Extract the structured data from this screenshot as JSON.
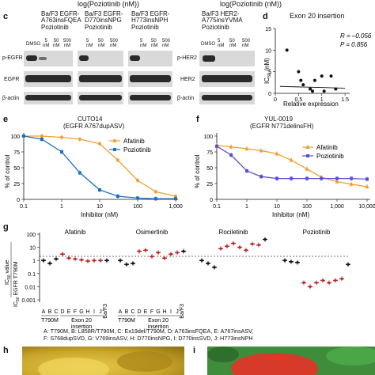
{
  "top_strip": {
    "left_label": "log(Poziotinib (nM))",
    "right_label": "log(Poziotinib (nM))"
  },
  "panel_c": {
    "letter": "c",
    "headers": [
      "Ba/F3 EGFR-\nA763insFQEA\nPoziotinib",
      "Ba/F3 EGFR-\nD770insNPG\nPoziotinib",
      "Ba/F3 EGFR-\nH773insNPH\nPoziotinib",
      "Ba/F3 HER2-\nA775insYVMA\nPoziotinib"
    ],
    "dose_labels": [
      "DMSO",
      "5\nnM",
      "50\nnM",
      "500\nnM"
    ],
    "row_labels_left": [
      "p-EGFR",
      "EGFR",
      "β-actin"
    ],
    "row_labels_right": [
      "p-HER2",
      "HER2",
      "β-actin"
    ]
  },
  "panel_d": {
    "letter": "d",
    "title": "Exon 20 insertion",
    "r_label": "R = –0.056",
    "p_label": "P = 0.856",
    "xlabel": "Relative expression",
    "ylabel": "IC50 (nM)",
    "ticks_y": [
      "15",
      "10",
      "5",
      "0"
    ],
    "ticks_x": [
      "0",
      "0.5",
      "1",
      "1.5"
    ]
  },
  "panel_e": {
    "letter": "e",
    "title_line1": "CUTO14",
    "title_line2": "(EGFR A767dupASV)",
    "xlabel": "Inhibitor (nM)",
    "ylabel": "% of control",
    "legend": [
      "Afatinib",
      "Poziotinib"
    ],
    "colors": {
      "afatinib": "#f0a030",
      "poziotinib": "#1f6fc0"
    }
  },
  "panel_f": {
    "letter": "f",
    "title_line1": "YUL-0019",
    "title_line2": "(EGFR N771delinsFH)",
    "xlabel": "Inhibitor (nM)",
    "ylabel": "% of control",
    "legend": [
      "Afatinib",
      "Poziotinib"
    ],
    "colors": {
      "afatinib": "#f0a030",
      "poziotinib": "#5a4fd0"
    }
  },
  "panel_g": {
    "letter": "g",
    "drug_labels": [
      "Afatinib",
      "Osimertinib",
      "Rociletinib",
      "Poziotinib"
    ],
    "ylabel_top": "IC50 value",
    "ylabel_bottom": "IC50 EGFR T790M",
    "ticks_y": [
      "100",
      "10",
      "1",
      "0.1",
      "0.01",
      "0.001"
    ],
    "x_letters": [
      "A",
      "B",
      "C",
      "D",
      "E",
      "F",
      "G",
      "H",
      "I",
      "J",
      "Ba/F3"
    ],
    "group_t790m": "T790M",
    "group_exon20_line1": "Exon 20",
    "group_exon20_line2": "insertion",
    "legend_line1": "A: T790M, B: L858R/T790M, C: Ex19del/T790M, D: A763insFQEA, E: A767insASV,",
    "legend_line2": "F: S768dupSVD, G: V769insASV, H: D770insNPG, I: D770insSVD, J: H773insNPH",
    "colors": {
      "t790m": "#111111",
      "exon20": "#c0282c"
    }
  },
  "panel_h": {
    "letter": "h"
  },
  "panel_i": {
    "letter": "i"
  },
  "chart_data": [
    {
      "type": "scatter",
      "title": "Exon 20 insertion",
      "xlabel": "Relative expression",
      "ylabel": "IC50 (nM)",
      "xlim": [
        0,
        1.6
      ],
      "ylim": [
        0,
        15
      ],
      "points": [
        [
          0.25,
          10
        ],
        [
          0.5,
          5
        ],
        [
          0.55,
          3
        ],
        [
          0.6,
          2
        ],
        [
          0.75,
          1
        ],
        [
          0.8,
          0.5
        ],
        [
          0.85,
          3
        ],
        [
          1.0,
          4
        ],
        [
          1.05,
          0.5
        ],
        [
          1.2,
          4
        ],
        [
          1.3,
          1
        ]
      ],
      "regression": [
        [
          0.1,
          1.6
        ],
        [
          1.5,
          1.2
        ]
      ]
    },
    {
      "type": "line",
      "title": "CUTO14 (EGFR A767dupASV)",
      "xlabel": "Inhibitor (nM)",
      "ylabel": "% of control",
      "xscale": "log",
      "x": [
        0.1,
        0.3,
        1,
        3,
        10,
        30,
        100,
        300,
        1000
      ],
      "ylim": [
        0,
        100
      ],
      "series": [
        {
          "name": "Afatinib",
          "values": [
            100,
            100,
            98,
            95,
            88,
            62,
            30,
            12,
            5
          ]
        },
        {
          "name": "Poziotinib",
          "values": [
            100,
            95,
            75,
            42,
            15,
            5,
            2,
            1,
            1
          ]
        }
      ]
    },
    {
      "type": "line",
      "title": "YUL-0019 (EGFR N771delinsFH)",
      "xlabel": "Inhibitor (nM)",
      "ylabel": "% of control",
      "xscale": "log",
      "x": [
        0.1,
        0.3,
        1,
        3,
        10,
        30,
        100,
        300,
        1000,
        3000,
        10000
      ],
      "ylim": [
        0,
        100
      ],
      "series": [
        {
          "name": "Afatinib",
          "values": [
            85,
            83,
            80,
            77,
            72,
            62,
            48,
            35,
            28,
            24,
            20
          ]
        },
        {
          "name": "Poziotinib",
          "values": [
            84,
            70,
            45,
            36,
            33,
            33,
            33,
            33,
            33,
            33,
            32
          ]
        }
      ]
    },
    {
      "type": "scatter",
      "title": "",
      "ylabel": "IC50 value / IC50 EGFR T790M",
      "yscale": "log",
      "ylim": [
        0.001,
        100
      ],
      "groups": [
        {
          "name": "Afatinib",
          "values": [
            1.0,
            0.6,
            1.3,
            3,
            1.5,
            1.3,
            1.1,
            0.9,
            1.0,
            1.0,
            1.0
          ]
        },
        {
          "name": "Osimertinib",
          "values": [
            1.0,
            0.5,
            0.6,
            5,
            6,
            2,
            4,
            1.5,
            3,
            4,
            5
          ]
        },
        {
          "name": "Rociletinib",
          "values": [
            1.0,
            0.6,
            0.3,
            8,
            12,
            20,
            10,
            6,
            18,
            15,
            40
          ]
        },
        {
          "name": "Poziotinib",
          "values": [
            1.0,
            0.8,
            0.7,
            0.02,
            0.01,
            0.02,
            0.03,
            0.02,
            0.03,
            0.04,
            0.5
          ]
        }
      ]
    }
  ]
}
